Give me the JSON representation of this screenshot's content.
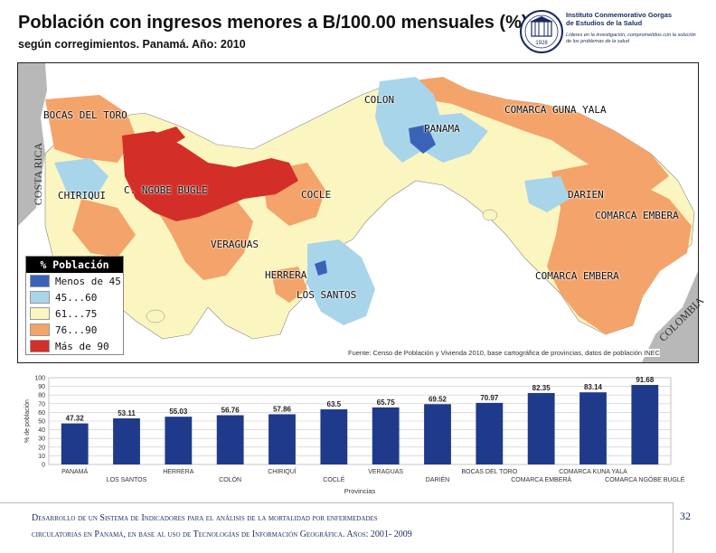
{
  "header": {
    "title": "Población con ingresos menores a B/100.00 mensuales (%)",
    "subtitle": "según corregimientos. Panamá. Año: 2010"
  },
  "logo": {
    "name": "Instituto Conmemorativo Gorgas de Estudios de la Salud",
    "tagline": "Líderes en la investigación, comprometidos con la solución de los problemas de la salud",
    "seal_text": "1928"
  },
  "map": {
    "labels": {
      "bocas": "BOCAS DEL TORO",
      "colon": "COLON",
      "panama": "PANAMA",
      "guna": "COMARCA GUNA YALA",
      "chiriqui": "CHIRIQUI",
      "ngobe": "C. NGOBE BUGLE",
      "cocle": "COCLE",
      "darien": "DARIEN",
      "emb1": "COMARCA EMBERA",
      "veraguas": "VERAGUAS",
      "herrera": "HERRERA",
      "lossantos": "LOS SANTOS",
      "emb2": "COMARCA EMBERA",
      "costarica": "COSTA RICA",
      "colombia": "COLOMBIA"
    },
    "source": "Fuente: Censo de Población y Vivienda 2010, base cartográfica de provincias, datos de población INEC",
    "legend": {
      "title": "% Población",
      "items": [
        {
          "label": "Menos de 45",
          "color": "#3a63b8"
        },
        {
          "label": "45...60",
          "color": "#a9d5ea"
        },
        {
          "label": "61...75",
          "color": "#fbf6c0"
        },
        {
          "label": "76...90",
          "color": "#f4a46a"
        },
        {
          "label": "Más de 90",
          "color": "#d32f28"
        }
      ]
    }
  },
  "chart_data": {
    "type": "bar",
    "categories": [
      "PANAMÁ",
      "LOS SANTOS",
      "HERRERA",
      "COLÓN",
      "CHIRIQUÍ",
      "COCLÉ",
      "VERAGUAS",
      "DARIÉN",
      "BOCAS DEL TORO",
      "COMARCA EMBERÁ",
      "COMARCA KUNA YALA",
      "COMARCA NGÖBE BUGLÉ"
    ],
    "values": [
      47.32,
      53.11,
      55.03,
      56.76,
      57.86,
      63.5,
      65.75,
      69.52,
      70.97,
      82.35,
      83.14,
      91.68
    ],
    "value_labels": [
      "47.32",
      "53.11",
      "55.03",
      "56.76",
      "57.86",
      "63.5",
      "65.75",
      "69.52",
      "70.97",
      "82.35",
      "83.14",
      "91.68"
    ],
    "ylabel": "% de población",
    "xlabel": "Provincias",
    "ylim": [
      0,
      100
    ],
    "yticks": [
      "0",
      "10",
      "20",
      "30",
      "40",
      "50",
      "60",
      "70",
      "80",
      "90",
      "100"
    ],
    "grid": true,
    "bar_color": "#1f3a8a"
  },
  "footer": {
    "line1": "Desarrollo de un Sistema de Indicadores para el análisis de la mortalidad por enfermedades",
    "line2": "circulatorias en Panamá, en base al uso de Tecnologías de Información Geográfica. Años: 2001- 2009",
    "page": "32"
  }
}
